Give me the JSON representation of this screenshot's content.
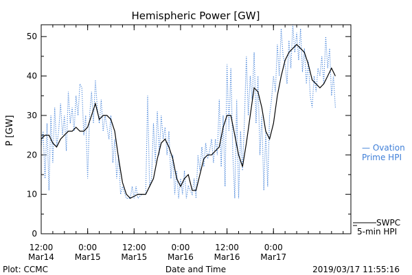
{
  "chart_data": {
    "type": "line",
    "title": "Hemispheric Power [GW]",
    "ylabel": "P [GW]",
    "xlabel": "Date and Time",
    "ylim": [
      0,
      53
    ],
    "yticks": [
      0,
      10,
      20,
      30,
      40,
      50
    ],
    "xlim": [
      "2019-03-14T12:00",
      "2019-03-17T20:00"
    ],
    "xticks": [
      {
        "t": "2019-03-14T12:00",
        "line1": "12:00",
        "line2": "Mar14"
      },
      {
        "t": "2019-03-15T00:00",
        "line1": "0:00",
        "line2": "Mar15"
      },
      {
        "t": "2019-03-15T12:00",
        "line1": "12:00",
        "line2": "Mar15"
      },
      {
        "t": "2019-03-16T00:00",
        "line1": "0:00",
        "line2": "Mar16"
      },
      {
        "t": "2019-03-16T12:00",
        "line1": "12:00",
        "line2": "Mar16"
      },
      {
        "t": "2019-03-17T00:00",
        "line1": "0:00",
        "line2": "Mar17"
      }
    ],
    "series": [
      {
        "name": "SWPC 5-min HPI",
        "legend_line1": "SWPC",
        "legend_line2": "5-min HPI",
        "color": "#000000",
        "style": "solid",
        "points": [
          [
            "2019-03-14T12:00",
            24
          ],
          [
            "2019-03-14T13:00",
            25
          ],
          [
            "2019-03-14T14:00",
            25
          ],
          [
            "2019-03-14T15:00",
            23
          ],
          [
            "2019-03-14T16:00",
            22
          ],
          [
            "2019-03-14T17:00",
            24
          ],
          [
            "2019-03-14T18:00",
            25
          ],
          [
            "2019-03-14T19:00",
            26
          ],
          [
            "2019-03-14T20:00",
            26
          ],
          [
            "2019-03-14T21:00",
            27
          ],
          [
            "2019-03-14T22:00",
            26
          ],
          [
            "2019-03-14T23:00",
            26
          ],
          [
            "2019-03-15T00:00",
            27
          ],
          [
            "2019-03-15T01:00",
            30
          ],
          [
            "2019-03-15T02:00",
            33
          ],
          [
            "2019-03-15T03:00",
            29
          ],
          [
            "2019-03-15T04:00",
            30
          ],
          [
            "2019-03-15T05:00",
            30
          ],
          [
            "2019-03-15T06:00",
            29
          ],
          [
            "2019-03-15T07:00",
            26
          ],
          [
            "2019-03-15T08:00",
            19
          ],
          [
            "2019-03-15T09:00",
            13
          ],
          [
            "2019-03-15T10:00",
            10
          ],
          [
            "2019-03-15T11:00",
            9
          ],
          [
            "2019-03-15T12:00",
            9.5
          ],
          [
            "2019-03-15T13:00",
            10
          ],
          [
            "2019-03-15T14:00",
            10
          ],
          [
            "2019-03-15T15:00",
            10
          ],
          [
            "2019-03-15T16:00",
            12
          ],
          [
            "2019-03-15T17:00",
            14
          ],
          [
            "2019-03-15T18:00",
            19
          ],
          [
            "2019-03-15T19:00",
            23
          ],
          [
            "2019-03-15T20:00",
            24
          ],
          [
            "2019-03-15T21:00",
            22
          ],
          [
            "2019-03-15T22:00",
            19
          ],
          [
            "2019-03-15T23:00",
            14
          ],
          [
            "2019-03-16T00:00",
            12
          ],
          [
            "2019-03-16T01:00",
            14
          ],
          [
            "2019-03-16T02:00",
            15
          ],
          [
            "2019-03-16T03:00",
            11
          ],
          [
            "2019-03-16T04:00",
            11
          ],
          [
            "2019-03-16T05:00",
            15
          ],
          [
            "2019-03-16T06:00",
            19
          ],
          [
            "2019-03-16T07:00",
            20
          ],
          [
            "2019-03-16T08:00",
            20
          ],
          [
            "2019-03-16T09:00",
            21
          ],
          [
            "2019-03-16T10:00",
            22
          ],
          [
            "2019-03-16T11:00",
            27
          ],
          [
            "2019-03-16T12:00",
            30
          ],
          [
            "2019-03-16T13:00",
            30
          ],
          [
            "2019-03-16T14:00",
            25
          ],
          [
            "2019-03-16T15:00",
            20
          ],
          [
            "2019-03-16T16:00",
            17
          ],
          [
            "2019-03-16T17:00",
            23
          ],
          [
            "2019-03-16T18:00",
            30
          ],
          [
            "2019-03-16T19:00",
            37
          ],
          [
            "2019-03-16T20:00",
            36
          ],
          [
            "2019-03-16T21:00",
            32
          ],
          [
            "2019-03-16T22:00",
            26
          ],
          [
            "2019-03-16T23:00",
            24
          ],
          [
            "2019-03-17T00:00",
            28
          ],
          [
            "2019-03-17T01:00",
            35
          ],
          [
            "2019-03-17T02:00",
            40
          ],
          [
            "2019-03-17T03:00",
            44
          ],
          [
            "2019-03-17T04:00",
            46
          ],
          [
            "2019-03-17T05:00",
            47
          ],
          [
            "2019-03-17T06:00",
            48
          ],
          [
            "2019-03-17T07:00",
            47
          ],
          [
            "2019-03-17T08:00",
            46
          ],
          [
            "2019-03-17T09:00",
            43
          ],
          [
            "2019-03-17T10:00",
            39
          ],
          [
            "2019-03-17T11:00",
            38
          ],
          [
            "2019-03-17T12:00",
            37
          ],
          [
            "2019-03-17T13:00",
            38
          ],
          [
            "2019-03-17T14:00",
            40
          ],
          [
            "2019-03-17T15:00",
            42
          ],
          [
            "2019-03-17T16:00",
            40
          ]
        ]
      },
      {
        "name": "Ovation Prime HPI",
        "legend_line1": "— Ovation",
        "legend_line2": "Prime HPI",
        "color": "#3f7fd8",
        "style": "dotted",
        "points": [
          [
            "2019-03-14T12:00",
            22
          ],
          [
            "2019-03-14T12:30",
            26
          ],
          [
            "2019-03-14T13:00",
            14
          ],
          [
            "2019-03-14T13:30",
            28
          ],
          [
            "2019-03-14T14:00",
            11
          ],
          [
            "2019-03-14T14:30",
            30
          ],
          [
            "2019-03-14T15:00",
            18
          ],
          [
            "2019-03-14T15:30",
            32
          ],
          [
            "2019-03-14T16:00",
            22
          ],
          [
            "2019-03-14T16:30",
            26
          ],
          [
            "2019-03-14T17:00",
            33
          ],
          [
            "2019-03-14T17:30",
            25
          ],
          [
            "2019-03-14T18:00",
            30
          ],
          [
            "2019-03-14T18:30",
            21
          ],
          [
            "2019-03-14T19:00",
            36
          ],
          [
            "2019-03-14T19:30",
            28
          ],
          [
            "2019-03-14T20:00",
            32
          ],
          [
            "2019-03-14T20:30",
            26
          ],
          [
            "2019-03-14T21:00",
            35
          ],
          [
            "2019-03-14T21:30",
            30
          ],
          [
            "2019-03-14T22:00",
            38
          ],
          [
            "2019-03-14T22:30",
            37
          ],
          [
            "2019-03-14T23:00",
            25
          ],
          [
            "2019-03-14T23:30",
            30
          ],
          [
            "2019-03-15T00:00",
            14
          ],
          [
            "2019-03-15T00:30",
            30
          ],
          [
            "2019-03-15T01:00",
            36
          ],
          [
            "2019-03-15T01:30",
            28
          ],
          [
            "2019-03-15T02:00",
            39
          ],
          [
            "2019-03-15T02:30",
            32
          ],
          [
            "2019-03-15T03:00",
            28
          ],
          [
            "2019-03-15T03:30",
            34
          ],
          [
            "2019-03-15T04:00",
            26
          ],
          [
            "2019-03-15T04:30",
            30
          ],
          [
            "2019-03-15T05:00",
            27
          ],
          [
            "2019-03-15T05:30",
            24
          ],
          [
            "2019-03-15T06:00",
            30
          ],
          [
            "2019-03-15T06:30",
            18
          ],
          [
            "2019-03-15T07:00",
            24
          ],
          [
            "2019-03-15T07:30",
            14
          ],
          [
            "2019-03-15T08:00",
            20
          ],
          [
            "2019-03-15T08:30",
            10
          ],
          [
            "2019-03-15T09:00",
            12
          ],
          [
            "2019-03-15T10:00",
            9
          ],
          [
            "2019-03-15T11:00",
            9
          ],
          [
            "2019-03-15T11:30",
            12
          ],
          [
            "2019-03-15T12:00",
            9
          ],
          [
            "2019-03-15T12:30",
            12
          ],
          [
            "2019-03-15T13:00",
            9
          ],
          [
            "2019-03-15T14:00",
            10
          ],
          [
            "2019-03-15T15:00",
            10
          ],
          [
            "2019-03-15T15:30",
            35
          ],
          [
            "2019-03-15T16:00",
            12
          ],
          [
            "2019-03-15T16:30",
            14
          ],
          [
            "2019-03-15T17:00",
            28
          ],
          [
            "2019-03-15T17:30",
            18
          ],
          [
            "2019-03-15T18:00",
            31
          ],
          [
            "2019-03-15T18:30",
            20
          ],
          [
            "2019-03-15T19:00",
            30
          ],
          [
            "2019-03-15T19:30",
            24
          ],
          [
            "2019-03-15T20:00",
            27
          ],
          [
            "2019-03-15T20:30",
            20
          ],
          [
            "2019-03-15T21:00",
            26
          ],
          [
            "2019-03-15T21:30",
            14
          ],
          [
            "2019-03-15T22:00",
            20
          ],
          [
            "2019-03-15T22:30",
            10
          ],
          [
            "2019-03-15T23:00",
            16
          ],
          [
            "2019-03-15T23:30",
            9
          ],
          [
            "2019-03-16T00:00",
            14
          ],
          [
            "2019-03-16T00:30",
            10
          ],
          [
            "2019-03-16T01:00",
            16
          ],
          [
            "2019-03-16T01:30",
            9
          ],
          [
            "2019-03-16T02:00",
            12
          ],
          [
            "2019-03-16T03:00",
            10
          ],
          [
            "2019-03-16T03:30",
            14
          ],
          [
            "2019-03-16T04:00",
            9
          ],
          [
            "2019-03-16T04:30",
            20
          ],
          [
            "2019-03-16T05:00",
            16
          ],
          [
            "2019-03-16T05:30",
            22
          ],
          [
            "2019-03-16T06:00",
            17
          ],
          [
            "2019-03-16T06:30",
            23
          ],
          [
            "2019-03-16T07:00",
            19
          ],
          [
            "2019-03-16T07:30",
            21
          ],
          [
            "2019-03-16T08:00",
            24
          ],
          [
            "2019-03-16T08:30",
            18
          ],
          [
            "2019-03-16T09:00",
            24
          ],
          [
            "2019-03-16T09:30",
            20
          ],
          [
            "2019-03-16T10:00",
            34
          ],
          [
            "2019-03-16T10:30",
            17
          ],
          [
            "2019-03-16T11:00",
            30
          ],
          [
            "2019-03-16T11:30",
            12
          ],
          [
            "2019-03-16T12:00",
            43
          ],
          [
            "2019-03-16T12:30",
            26
          ],
          [
            "2019-03-16T13:00",
            42
          ],
          [
            "2019-03-16T13:30",
            20
          ],
          [
            "2019-03-16T14:00",
            9
          ],
          [
            "2019-03-16T14:30",
            34
          ],
          [
            "2019-03-16T15:00",
            9
          ],
          [
            "2019-03-16T15:30",
            26
          ],
          [
            "2019-03-16T16:00",
            16
          ],
          [
            "2019-03-16T16:30",
            29
          ],
          [
            "2019-03-16T17:00",
            45
          ],
          [
            "2019-03-16T17:30",
            30
          ],
          [
            "2019-03-16T18:00",
            40
          ],
          [
            "2019-03-16T18:30",
            34
          ],
          [
            "2019-03-16T19:00",
            46
          ],
          [
            "2019-03-16T19:30",
            28
          ],
          [
            "2019-03-16T20:00",
            40
          ],
          [
            "2019-03-16T20:30",
            20
          ],
          [
            "2019-03-16T21:00",
            30
          ],
          [
            "2019-03-16T21:30",
            11
          ],
          [
            "2019-03-16T22:00",
            26
          ],
          [
            "2019-03-16T22:30",
            12
          ],
          [
            "2019-03-16T23:00",
            30
          ],
          [
            "2019-03-16T23:30",
            34
          ],
          [
            "2019-03-17T00:00",
            40
          ],
          [
            "2019-03-17T00:30",
            36
          ],
          [
            "2019-03-17T01:00",
            48
          ],
          [
            "2019-03-17T01:30",
            40
          ],
          [
            "2019-03-17T02:00",
            52
          ],
          [
            "2019-03-17T02:30",
            45
          ],
          [
            "2019-03-17T03:00",
            43
          ],
          [
            "2019-03-17T03:30",
            38
          ],
          [
            "2019-03-17T04:00",
            49
          ],
          [
            "2019-03-17T04:30",
            42
          ],
          [
            "2019-03-17T05:00",
            53
          ],
          [
            "2019-03-17T05:30",
            46
          ],
          [
            "2019-03-17T06:00",
            51
          ],
          [
            "2019-03-17T06:30",
            44
          ],
          [
            "2019-03-17T07:00",
            52
          ],
          [
            "2019-03-17T07:30",
            41
          ],
          [
            "2019-03-17T08:00",
            47
          ],
          [
            "2019-03-17T08:30",
            38
          ],
          [
            "2019-03-17T09:00",
            44
          ],
          [
            "2019-03-17T09:30",
            35
          ],
          [
            "2019-03-17T10:00",
            32
          ],
          [
            "2019-03-17T10:30",
            40
          ],
          [
            "2019-03-17T11:00",
            36
          ],
          [
            "2019-03-17T11:30",
            42
          ],
          [
            "2019-03-17T12:00",
            40
          ],
          [
            "2019-03-17T12:30",
            45
          ],
          [
            "2019-03-17T13:00",
            38
          ],
          [
            "2019-03-17T13:30",
            50
          ],
          [
            "2019-03-17T14:00",
            42
          ],
          [
            "2019-03-17T14:30",
            47
          ],
          [
            "2019-03-17T15:00",
            35
          ],
          [
            "2019-03-17T15:30",
            40
          ],
          [
            "2019-03-17T16:00",
            32
          ]
        ]
      }
    ],
    "legend_placement": "right",
    "grid": false
  },
  "footer": {
    "plot_credit": "Plot: CCMC",
    "timestamp": "2019/03/17 11:55:16"
  }
}
